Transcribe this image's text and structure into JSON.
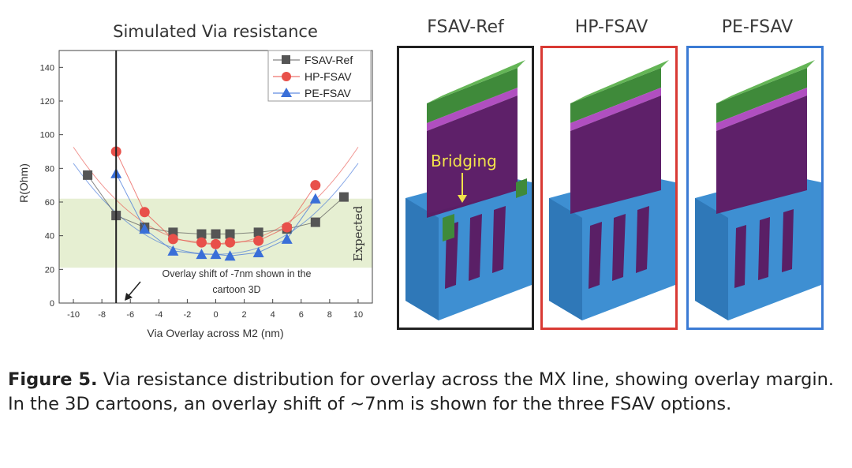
{
  "chart_data": {
    "type": "line",
    "title": "Simulated Via resistance",
    "xlabel": "Via Overlay across M2 (nm)",
    "ylabel": "R(Ohm)",
    "xlim": [
      -11,
      11
    ],
    "ylim": [
      0,
      150
    ],
    "xticks": [
      -10,
      -8,
      -6,
      -4,
      -2,
      0,
      2,
      4,
      6,
      8,
      10
    ],
    "yticks": [
      0,
      20,
      40,
      60,
      80,
      100,
      120,
      140
    ],
    "legend_position": "top-right",
    "series": [
      {
        "name": "FSAV-Ref",
        "color": "#555555",
        "marker": "square",
        "x": [
          -9,
          -7,
          -5,
          -3,
          -1,
          0,
          1,
          3,
          5,
          7,
          9
        ],
        "y": [
          76,
          52,
          45,
          42,
          41,
          41,
          41,
          42,
          44,
          48,
          63
        ]
      },
      {
        "name": "HP-FSAV",
        "color": "#e8504a",
        "marker": "circle",
        "x": [
          -7,
          -5,
          -3,
          -1,
          0,
          1,
          3,
          5,
          7
        ],
        "y": [
          90,
          54,
          38,
          36,
          35,
          36,
          37,
          45,
          70
        ]
      },
      {
        "name": "PE-FSAV",
        "color": "#3a6fd8",
        "marker": "triangle",
        "x": [
          -7,
          -5,
          -3,
          -1,
          0,
          1,
          3,
          5,
          7
        ],
        "y": [
          77,
          44,
          31,
          29,
          29,
          28,
          30,
          38,
          62
        ]
      }
    ],
    "expected_band": {
      "label": "Expected",
      "y_range": [
        21,
        62
      ]
    },
    "vertical_line_x": -7,
    "annotation": {
      "line1": "Overlay shift of -7nm shown in the",
      "line2": "cartoon 3D"
    }
  },
  "cartoons": {
    "fsav_ref": {
      "title": "FSAV-Ref",
      "border_color": "#222222",
      "label": "Bridging"
    },
    "hp_fsav": {
      "title": "HP-FSAV",
      "border_color": "#d93a34"
    },
    "pe_fsav": {
      "title": "PE-FSAV",
      "border_color": "#3b7bd4"
    }
  },
  "caption": {
    "label": "Figure 5.",
    "text": " Via resistance distribution for overlay across the MX line, showing overlay margin. In the 3D cartoons, an overlay shift of ~7nm is shown for the three FSAV options."
  }
}
